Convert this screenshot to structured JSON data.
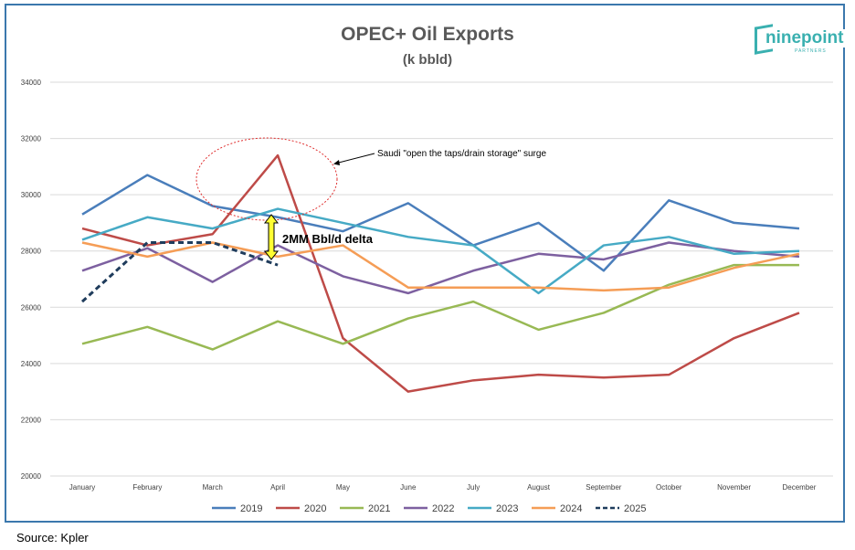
{
  "chart_data": {
    "type": "line",
    "title": "OPEC+ Oil Exports",
    "subtitle": "(k bbld)",
    "categories": [
      "January",
      "February",
      "March",
      "April",
      "May",
      "June",
      "July",
      "August",
      "September",
      "October",
      "November",
      "December"
    ],
    "ylim": [
      20000,
      34000
    ],
    "yticks": [
      20000,
      22000,
      24000,
      26000,
      28000,
      30000,
      32000,
      34000
    ],
    "grid": true,
    "legend_position": "bottom",
    "series": [
      {
        "name": "2019",
        "color": "#4a7ebb",
        "dashed": false,
        "values": [
          29300,
          30700,
          29600,
          29200,
          28700,
          29700,
          28200,
          29000,
          27300,
          29800,
          29000,
          28800
        ]
      },
      {
        "name": "2020",
        "color": "#be4b48",
        "dashed": false,
        "values": [
          28800,
          28200,
          28600,
          31400,
          24900,
          23000,
          23400,
          23600,
          23500,
          23600,
          24900,
          25800
        ]
      },
      {
        "name": "2021",
        "color": "#98b954",
        "dashed": false,
        "values": [
          24700,
          25300,
          24500,
          25500,
          24700,
          25600,
          26200,
          25200,
          25800,
          26800,
          27500,
          27500
        ]
      },
      {
        "name": "2022",
        "color": "#7d60a0",
        "dashed": false,
        "values": [
          27300,
          28100,
          26900,
          28200,
          27100,
          26500,
          27300,
          27900,
          27700,
          28300,
          28000,
          27800
        ]
      },
      {
        "name": "2023",
        "color": "#46aac5",
        "dashed": false,
        "values": [
          28400,
          29200,
          28800,
          29500,
          29000,
          28500,
          28200,
          26500,
          28200,
          28500,
          27900,
          28000
        ]
      },
      {
        "name": "2024",
        "color": "#f59d56",
        "dashed": false,
        "values": [
          28300,
          27800,
          28300,
          27800,
          28200,
          26700,
          26700,
          26700,
          26600,
          26700,
          27400,
          27900
        ]
      },
      {
        "name": "2025",
        "color": "#1f3c5c",
        "dashed": true,
        "values": [
          26200,
          28300,
          28300,
          27500,
          null,
          null,
          null,
          null,
          null,
          null,
          null,
          null
        ]
      }
    ],
    "annotations": {
      "surge_text": "Saudi \"open the taps/drain storage\" surge",
      "delta_text": "2MM Bbl/d delta"
    }
  },
  "source": "Source: Kpler",
  "logo": {
    "text": "ninepoint",
    "sub": "PARTNERS"
  }
}
